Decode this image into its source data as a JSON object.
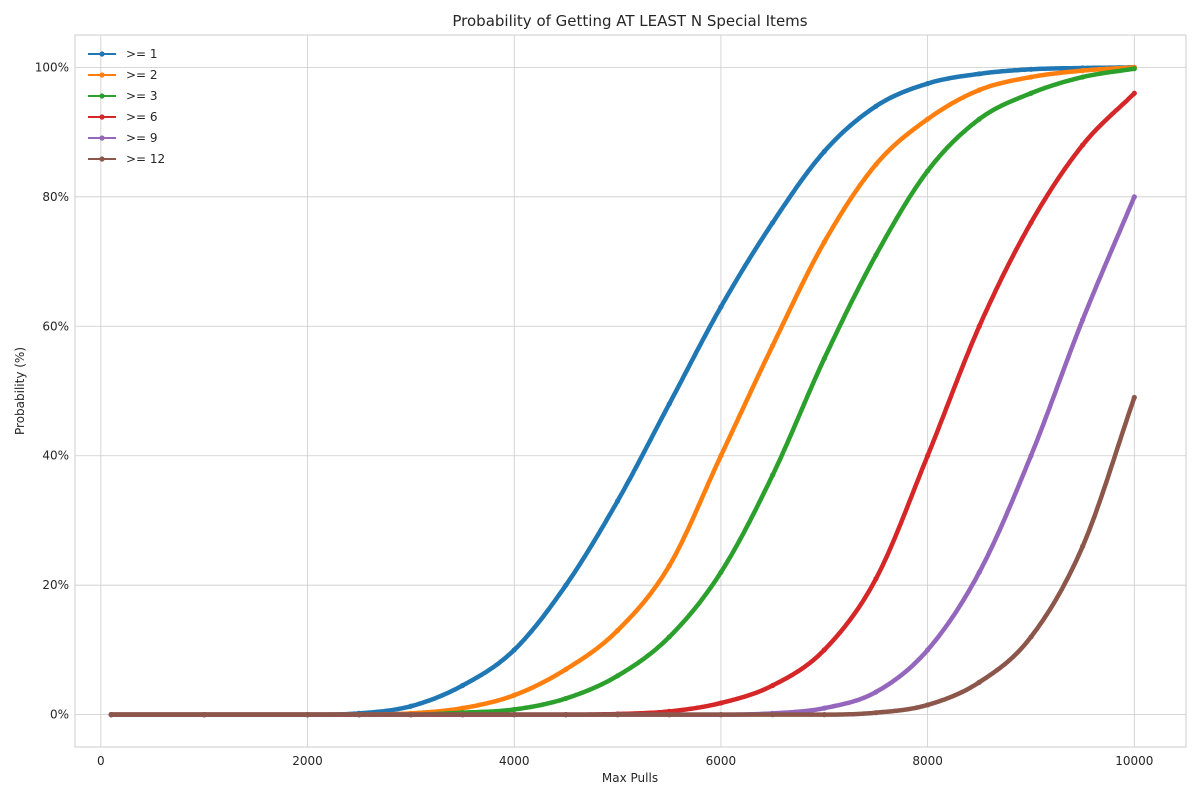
{
  "chart_data": {
    "type": "line",
    "title": "Probability of Getting AT LEAST N Special Items",
    "xlabel": "Max Pulls",
    "ylabel": "Probability (%)",
    "xlim": [
      -250,
      10500
    ],
    "ylim": [
      -5,
      105
    ],
    "xticks": [
      0,
      2000,
      4000,
      6000,
      8000,
      10000
    ],
    "xtick_labels": [
      "0",
      "2000",
      "4000",
      "6000",
      "8000",
      "10000"
    ],
    "yticks": [
      0,
      20,
      40,
      60,
      80,
      100
    ],
    "ytick_labels": [
      "0%",
      "20%",
      "40%",
      "60%",
      "80%",
      "100%"
    ],
    "grid": true,
    "legend_position": "top-left",
    "x": [
      100,
      1000,
      2000,
      2500,
      3000,
      3500,
      4000,
      4500,
      5000,
      5500,
      6000,
      6500,
      7000,
      7500,
      8000,
      8500,
      9000,
      9500,
      10000
    ],
    "series": [
      {
        "name": ">= 1",
        "color": "#1f77b4",
        "values": [
          0,
          0,
          0,
          0.2,
          1.3,
          4.5,
          10,
          20,
          33,
          48,
          63,
          76,
          87,
          94,
          97.5,
          99,
          99.7,
          99.9,
          100
        ]
      },
      {
        "name": ">= 2",
        "color": "#ff7f0e",
        "values": [
          0,
          0,
          0,
          0,
          0.2,
          1,
          3,
          7,
          13,
          23,
          40,
          57,
          73,
          85,
          92,
          96.5,
          98.5,
          99.5,
          100
        ]
      },
      {
        "name": ">= 3",
        "color": "#2ca02c",
        "values": [
          0,
          0,
          0,
          0,
          0,
          0.3,
          0.8,
          2.5,
          6,
          12,
          22,
          37,
          55,
          71,
          84,
          92,
          96,
          98.5,
          99.8
        ]
      },
      {
        "name": ">= 6",
        "color": "#d62728",
        "values": [
          0,
          0,
          0,
          0,
          0,
          0,
          0,
          0,
          0.1,
          0.5,
          1.8,
          4.5,
          10,
          21,
          40,
          60,
          76,
          88,
          96
        ]
      },
      {
        "name": ">= 9",
        "color": "#9467bd",
        "values": [
          0,
          0,
          0,
          0,
          0,
          0,
          0,
          0,
          0,
          0,
          0,
          0.2,
          1,
          3.5,
          10,
          22,
          40,
          61,
          80
        ]
      },
      {
        "name": ">= 12",
        "color": "#8c564b",
        "values": [
          0,
          0,
          0,
          0,
          0,
          0,
          0,
          0,
          0,
          0,
          0,
          0,
          0,
          0.3,
          1.5,
          5,
          12,
          26,
          49
        ]
      }
    ]
  }
}
